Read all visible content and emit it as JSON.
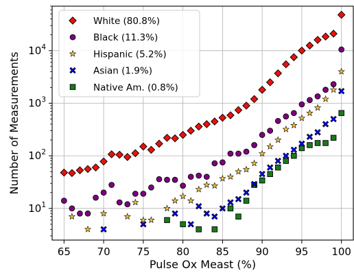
{
  "chart_data": {
    "type": "scatter",
    "title": "",
    "xlabel": "Pulse Ox Meast (%)",
    "ylabel": "Number of Measurements",
    "xlim": [
      63.5,
      101.5
    ],
    "ylim": [
      2.5,
      70000
    ],
    "yscale": "log",
    "grid": true,
    "legend_position": "top-left",
    "x_ticks": [
      65,
      70,
      75,
      80,
      85,
      90,
      95,
      100
    ],
    "y_ticks": [
      {
        "value": 10,
        "base": "10",
        "exp": "1"
      },
      {
        "value": 100,
        "base": "10",
        "exp": "2"
      },
      {
        "value": 1000,
        "base": "10",
        "exp": "3"
      },
      {
        "value": 10000,
        "base": "10",
        "exp": "4"
      }
    ],
    "series": [
      {
        "name": "White (80.8%)",
        "marker": "diamond",
        "color": "#e8120c",
        "points": [
          [
            65,
            48
          ],
          [
            66,
            47
          ],
          [
            67,
            53
          ],
          [
            68,
            56
          ],
          [
            69,
            60
          ],
          [
            70,
            78
          ],
          [
            71,
            107
          ],
          [
            72,
            105
          ],
          [
            73,
            95
          ],
          [
            74,
            112
          ],
          [
            75,
            150
          ],
          [
            76,
            130
          ],
          [
            77,
            170
          ],
          [
            78,
            220
          ],
          [
            79,
            215
          ],
          [
            80,
            250
          ],
          [
            81,
            300
          ],
          [
            82,
            360
          ],
          [
            83,
            400
          ],
          [
            84,
            450
          ],
          [
            85,
            530
          ],
          [
            86,
            590
          ],
          [
            87,
            740
          ],
          [
            88,
            900
          ],
          [
            89,
            1200
          ],
          [
            90,
            1800
          ],
          [
            91,
            2500
          ],
          [
            92,
            3700
          ],
          [
            93,
            5500
          ],
          [
            94,
            7500
          ],
          [
            95,
            10000
          ],
          [
            96,
            12500
          ],
          [
            97,
            16000
          ],
          [
            98,
            18500
          ],
          [
            99,
            21000
          ],
          [
            100,
            48000
          ]
        ]
      },
      {
        "name": "Black (11.3%)",
        "marker": "circle",
        "color": "#800080",
        "points": [
          [
            65,
            14
          ],
          [
            66,
            10
          ],
          [
            67,
            8
          ],
          [
            68,
            8
          ],
          [
            69,
            16
          ],
          [
            70,
            20
          ],
          [
            71,
            28
          ],
          [
            72,
            13
          ],
          [
            73,
            12
          ],
          [
            74,
            19
          ],
          [
            75,
            19
          ],
          [
            76,
            25
          ],
          [
            77,
            36
          ],
          [
            78,
            35
          ],
          [
            79,
            35
          ],
          [
            80,
            27
          ],
          [
            81,
            40
          ],
          [
            82,
            42
          ],
          [
            83,
            40
          ],
          [
            84,
            72
          ],
          [
            85,
            75
          ],
          [
            86,
            110
          ],
          [
            87,
            110
          ],
          [
            88,
            120
          ],
          [
            89,
            160
          ],
          [
            90,
            250
          ],
          [
            91,
            300
          ],
          [
            92,
            460
          ],
          [
            93,
            560
          ],
          [
            94,
            650
          ],
          [
            95,
            950
          ],
          [
            96,
            1150
          ],
          [
            97,
            1350
          ],
          [
            98,
            1800
          ],
          [
            99,
            2300
          ],
          [
            100,
            10500
          ]
        ]
      },
      {
        "name": "Hispanic (5.2%)",
        "marker": "star",
        "color": "#f5c23c",
        "points": [
          [
            66,
            7
          ],
          [
            68,
            4
          ],
          [
            70,
            8
          ],
          [
            73,
            7
          ],
          [
            74,
            13
          ],
          [
            75,
            6
          ],
          [
            76,
            6
          ],
          [
            78,
            10
          ],
          [
            79,
            14
          ],
          [
            80,
            17
          ],
          [
            81,
            14
          ],
          [
            82,
            23
          ],
          [
            83,
            28
          ],
          [
            84,
            27
          ],
          [
            85,
            37
          ],
          [
            86,
            40
          ],
          [
            87,
            50
          ],
          [
            88,
            55
          ],
          [
            89,
            72
          ],
          [
            90,
            110
          ],
          [
            91,
            150
          ],
          [
            92,
            200
          ],
          [
            93,
            320
          ],
          [
            94,
            380
          ],
          [
            95,
            520
          ],
          [
            96,
            650
          ],
          [
            97,
            820
          ],
          [
            98,
            1200
          ],
          [
            99,
            1800
          ],
          [
            100,
            4000
          ]
        ]
      },
      {
        "name": "Asian (1.9%)",
        "marker": "x",
        "color": "#0000ff",
        "points": [
          [
            70,
            4
          ],
          [
            75,
            5
          ],
          [
            79,
            8
          ],
          [
            81,
            5
          ],
          [
            82,
            11
          ],
          [
            83,
            8
          ],
          [
            84,
            7
          ],
          [
            85,
            10
          ],
          [
            86,
            13
          ],
          [
            87,
            15
          ],
          [
            88,
            20
          ],
          [
            89,
            29
          ],
          [
            90,
            45
          ],
          [
            91,
            60
          ],
          [
            92,
            80
          ],
          [
            93,
            100
          ],
          [
            94,
            130
          ],
          [
            95,
            170
          ],
          [
            96,
            230
          ],
          [
            97,
            280
          ],
          [
            98,
            400
          ],
          [
            99,
            500
          ],
          [
            100,
            1700
          ]
        ]
      },
      {
        "name": "Native Am. (0.8%)",
        "marker": "square",
        "color": "#1a7a1a",
        "points": [
          [
            78,
            6
          ],
          [
            80,
            5
          ],
          [
            82,
            4
          ],
          [
            84,
            4
          ],
          [
            86,
            10
          ],
          [
            87,
            7
          ],
          [
            88,
            14
          ],
          [
            89,
            28
          ],
          [
            90,
            34
          ],
          [
            91,
            45
          ],
          [
            92,
            60
          ],
          [
            93,
            80
          ],
          [
            94,
            100
          ],
          [
            95,
            140
          ],
          [
            96,
            160
          ],
          [
            97,
            175
          ],
          [
            98,
            175
          ],
          [
            99,
            220
          ],
          [
            100,
            650
          ]
        ]
      }
    ]
  }
}
